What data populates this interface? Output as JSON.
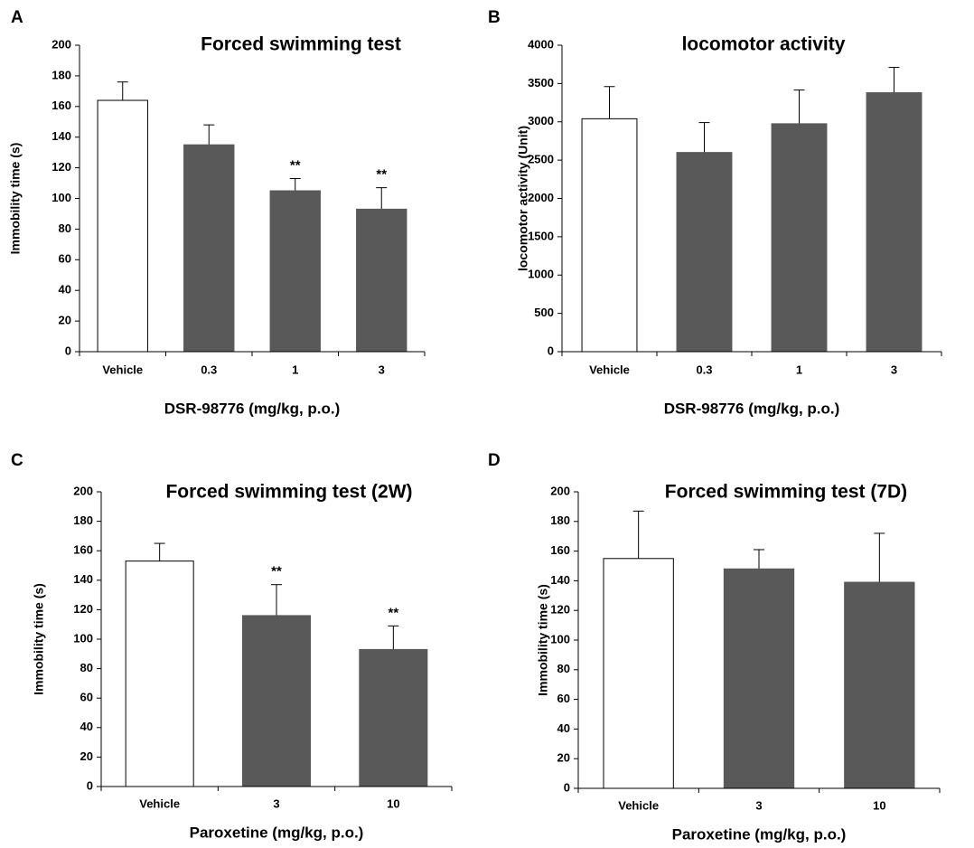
{
  "chart_data": [
    {
      "type": "bar",
      "panel": "A",
      "title": "Forced swimming test",
      "y_label": "Immobility time (s)",
      "x_label": "DSR-98776 (mg/kg, p.o.)",
      "categories": [
        "Vehicle",
        "0.3",
        "1",
        "3"
      ],
      "values": [
        164,
        135,
        105,
        93
      ],
      "errors": [
        12,
        13,
        8,
        14
      ],
      "annotations": [
        null,
        null,
        "**",
        "**"
      ],
      "colors": [
        "#ffffff",
        "#595959",
        "#595959",
        "#595959"
      ],
      "ylim": [
        0,
        200
      ],
      "yticks": [
        0,
        20,
        40,
        60,
        80,
        100,
        120,
        140,
        160,
        180,
        200
      ]
    },
    {
      "type": "bar",
      "panel": "B",
      "title": "locomotor activity",
      "y_label": "locomotor activity (Unit)",
      "x_label": "DSR-98776 (mg/kg, p.o.)",
      "categories": [
        "Vehicle",
        "0.3",
        "1",
        "3"
      ],
      "values": [
        3040,
        2600,
        2975,
        3380
      ],
      "errors": [
        420,
        390,
        440,
        330
      ],
      "colors": [
        "#ffffff",
        "#595959",
        "#595959",
        "#595959"
      ],
      "ylim": [
        0,
        4000
      ],
      "yticks": [
        0,
        500,
        1000,
        1500,
        2000,
        2500,
        3000,
        3500,
        4000
      ]
    },
    {
      "type": "bar",
      "panel": "C",
      "title": "Forced swimming test (2W)",
      "y_label": "Immobility time (s)",
      "x_label": "Paroxetine (mg/kg, p.o.)",
      "categories": [
        "Vehicle",
        "3",
        "10"
      ],
      "values": [
        153,
        116,
        93
      ],
      "errors": [
        12,
        21,
        16
      ],
      "annotations": [
        null,
        "**",
        "**"
      ],
      "colors": [
        "#ffffff",
        "#595959",
        "#595959"
      ],
      "ylim": [
        0,
        200
      ],
      "yticks": [
        0,
        20,
        40,
        60,
        80,
        100,
        120,
        140,
        160,
        180,
        200
      ]
    },
    {
      "type": "bar",
      "panel": "D",
      "title": "Forced swimming test (7D)",
      "y_label": "Immobility time (s)",
      "x_label": "Paroxetine (mg/kg, p.o.)",
      "categories": [
        "Vehicle",
        "3",
        "10"
      ],
      "values": [
        155,
        148,
        139
      ],
      "errors": [
        32,
        13,
        33
      ],
      "colors": [
        "#ffffff",
        "#595959",
        "#595959"
      ],
      "ylim": [
        0,
        200
      ],
      "yticks": [
        0,
        20,
        40,
        60,
        80,
        100,
        120,
        140,
        160,
        180,
        200
      ]
    }
  ]
}
